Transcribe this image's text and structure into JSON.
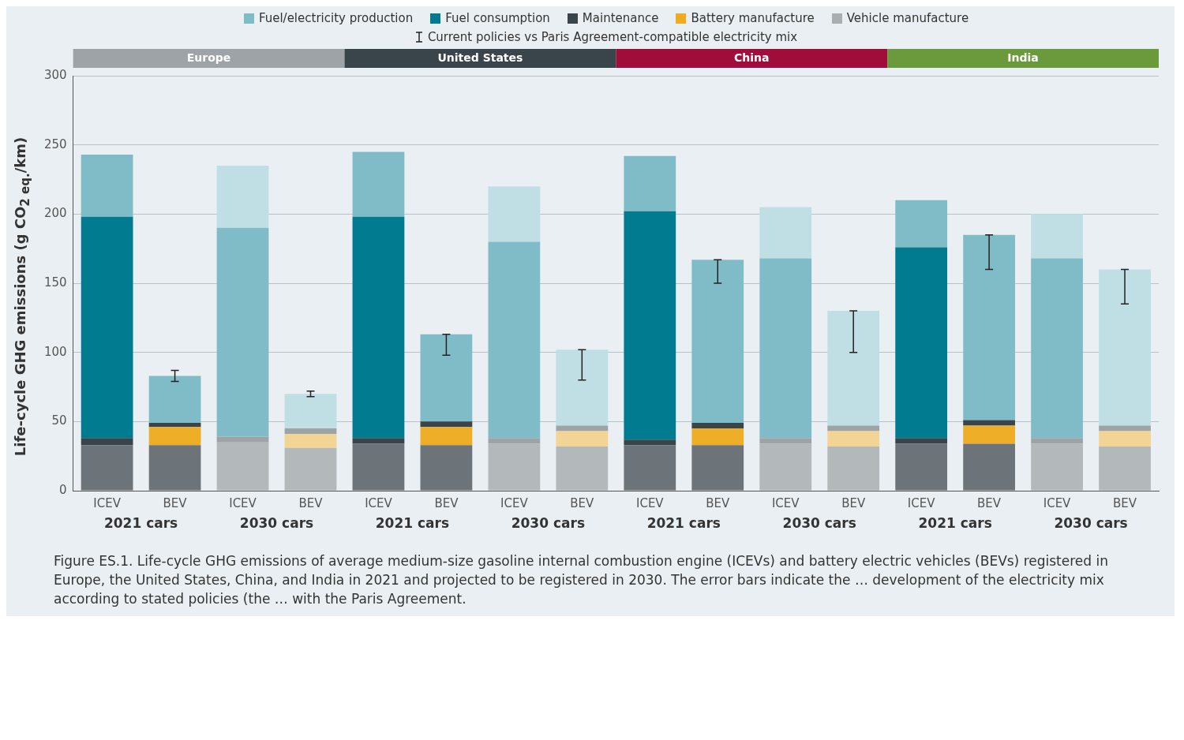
{
  "chart_data": {
    "type": "bar",
    "stacked": true,
    "ylabel": "Life-cycle GHG emissions (g CO$_{2 eq.}$/km)",
    "categories": [
      "ICEV",
      "BEV",
      "ICEV",
      "BEV",
      "ICEV",
      "BEV",
      "ICEV",
      "BEV",
      "ICEV",
      "BEV",
      "ICEV",
      "BEV",
      "ICEV",
      "BEV",
      "ICEV",
      "BEV"
    ],
    "series": [
      {
        "name": "Vehicle manufacture",
        "color": "#a9aeb1",
        "colors": [
          "#6c7479",
          "#6c7479",
          "#b3b8ba",
          "#b3b8ba",
          "#6c7479",
          "#6c7479",
          "#b3b8ba",
          "#b3b8ba",
          "#6c7479",
          "#6c7479",
          "#b3b8ba",
          "#b3b8ba",
          "#6c7479",
          "#6c7479",
          "#b3b8ba",
          "#b3b8ba"
        ],
        "values": [
          33,
          33,
          35,
          31,
          34,
          33,
          34,
          32,
          33,
          33,
          34,
          32,
          34,
          34,
          34,
          32
        ]
      },
      {
        "name": "Battery manufacture",
        "color": "#f0ac1f",
        "colors": [
          "#eeae27",
          "#eeae27",
          "#f2d495",
          "#f2d495",
          "#eeae27",
          "#eeae27",
          "#f2d495",
          "#f2d495",
          "#eeae27",
          "#eeae27",
          "#f2d495",
          "#f2d495",
          "#eeae27",
          "#eeae27",
          "#f2d495",
          "#f2d495"
        ],
        "values": [
          null,
          13,
          null,
          10,
          null,
          13,
          null,
          11,
          null,
          12,
          null,
          11,
          null,
          13,
          null,
          11
        ]
      },
      {
        "name": "Maintenance",
        "color": "#3a454b",
        "colors": [
          "#3a454b",
          "#3a454b",
          "#9ea3a6",
          "#9ea3a6",
          "#3a454b",
          "#3a454b",
          "#9ea3a6",
          "#9ea3a6",
          "#3a454b",
          "#3a454b",
          "#9ea3a6",
          "#9ea3a6",
          "#3a454b",
          "#3a454b",
          "#9ea3a6",
          "#9ea3a6"
        ],
        "values": [
          5,
          3,
          4,
          4,
          4,
          4,
          4,
          4,
          4,
          4,
          4,
          4,
          4,
          4,
          4,
          4
        ]
      },
      {
        "name": "Fuel consumption",
        "color": "#007b8f",
        "colors": [
          "#007b8f",
          "#007b8f",
          "#80bcc7",
          "#80bcc7",
          "#007b8f",
          "#007b8f",
          "#80bcc7",
          "#80bcc7",
          "#007b8f",
          "#007b8f",
          "#80bcc7",
          "#80bcc7",
          "#007b8f",
          "#007b8f",
          "#80bcc7",
          "#80bcc7"
        ],
        "values": [
          160,
          null,
          151,
          null,
          160,
          null,
          142,
          null,
          165,
          null,
          130,
          null,
          138,
          null,
          130,
          null
        ]
      },
      {
        "name": "Fuel/electricity production",
        "color": "#80bcc7",
        "colors": [
          "#80bcc7",
          "#80bcc7",
          "#bfdfe4",
          "#bfdfe4",
          "#80bcc7",
          "#80bcc7",
          "#bfdfe4",
          "#bfdfe4",
          "#80bcc7",
          "#80bcc7",
          "#bfdfe4",
          "#bfdfe4",
          "#80bcc7",
          "#80bcc7",
          "#bfdfe4",
          "#bfdfe4"
        ],
        "values": [
          45,
          34,
          45,
          25,
          47,
          63,
          40,
          55,
          40,
          118,
          37,
          83,
          34,
          134,
          32,
          113
        ],
        "errors": [
          null,
          [
            79,
            87
          ],
          null,
          [
            68,
            72
          ],
          null,
          [
            98,
            113
          ],
          null,
          [
            80,
            102
          ],
          null,
          [
            150,
            167
          ],
          null,
          [
            100,
            130
          ],
          null,
          [
            160,
            185
          ],
          null,
          [
            135,
            160
          ]
        ]
      }
    ],
    "ylim": [
      0,
      300
    ],
    "yticks": [
      0,
      50,
      100,
      150,
      200,
      250,
      300
    ],
    "grid": "y",
    "legend": "top",
    "annotations": [
      "Europe",
      "United States",
      "China",
      "India",
      "2021 cars",
      "2030 cars",
      "2021 cars",
      "2030 cars",
      "2021 cars",
      "2030 cars",
      "2021 cars",
      "2030 cars",
      "Current policies vs Paris Agreement-compatible electricity mix",
      "Figure ES.1. Life-cycle GHG emissions of average medium-size gasoline internal combustion engine (ICEVs) and battery electric vehicles (BEVs) registered in Europe, the United States, China, and India in 2021 and projected to be registered in 2030. The error bars indicate the … development of the electricity mix according to stated policies (the … with the Paris Agreement."
    ]
  }
}
